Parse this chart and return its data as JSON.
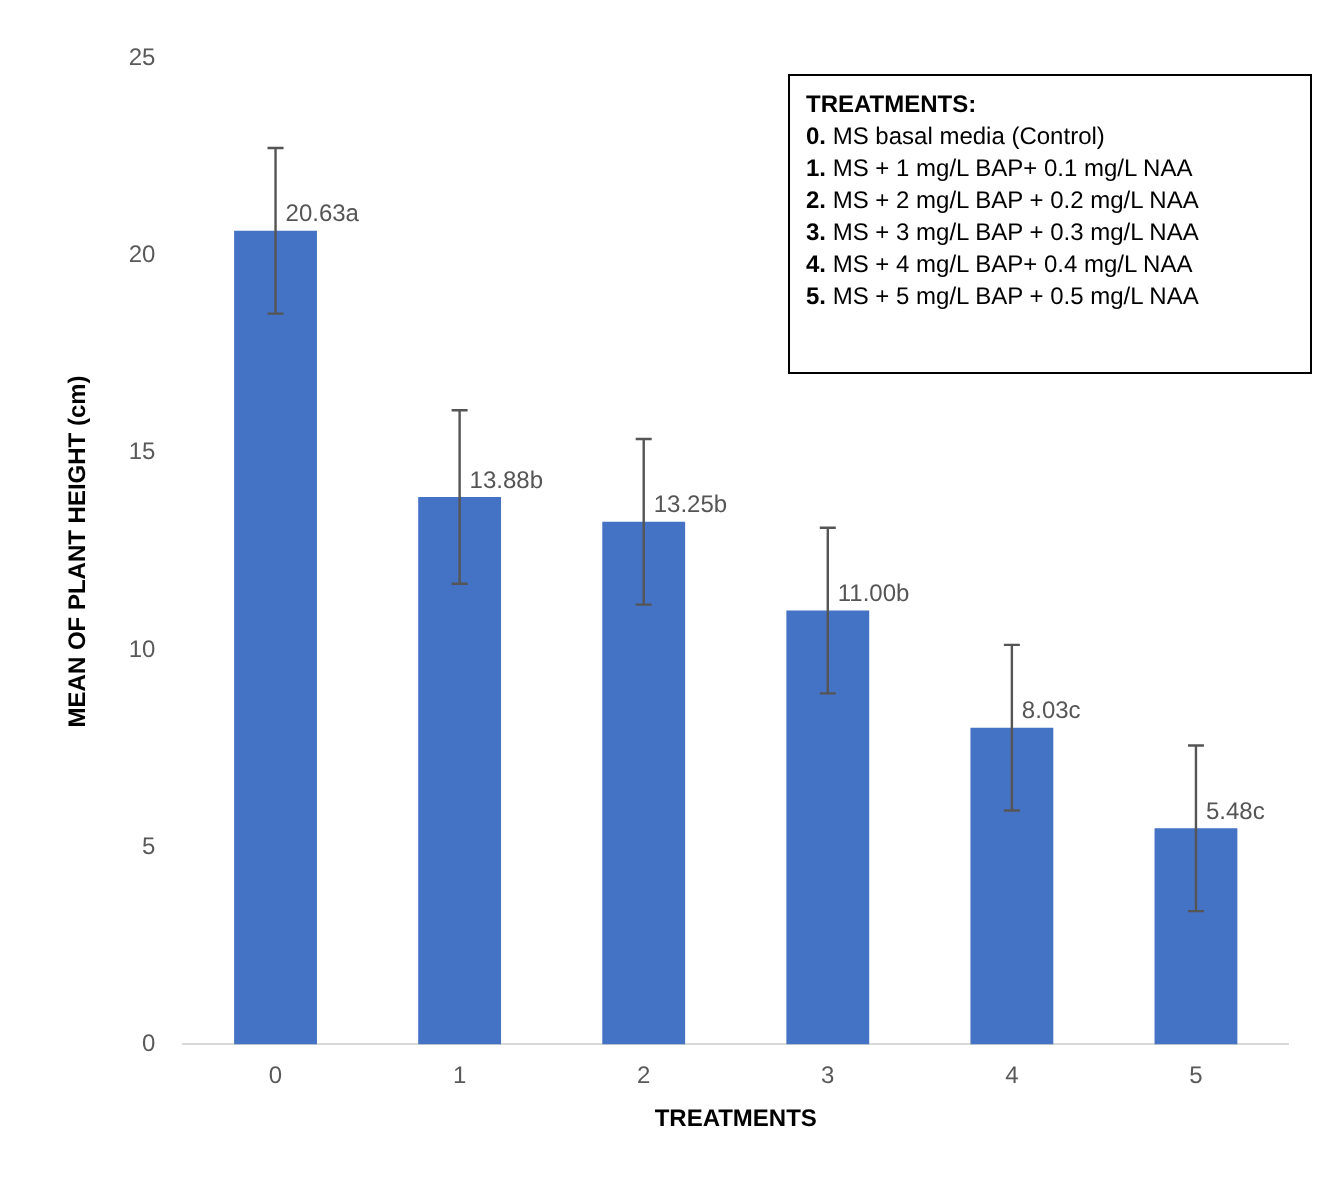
{
  "chart_data": {
    "type": "bar",
    "xlabel": "TREATMENTS",
    "ylabel": "MEAN OF PLANT HEIGHT (cm)",
    "categories": [
      "0",
      "1",
      "2",
      "3",
      "4",
      "5"
    ],
    "values": [
      20.63,
      13.88,
      13.25,
      11.0,
      8.03,
      5.48
    ],
    "value_labels": [
      "20.63a",
      "13.88b",
      "13.25b",
      "11.00b",
      "8.03c",
      "5.48c"
    ],
    "errors": [
      2.1,
      2.2,
      2.1,
      2.1,
      2.1,
      2.1
    ],
    "color": "#4472c4",
    "ylim": [
      0,
      25
    ],
    "yticks": [
      0,
      5,
      10,
      15,
      20,
      25
    ],
    "grid": false,
    "legend": false,
    "annotations": [
      "TREATMENTS:",
      "0. MS basal media (Control)",
      "1. MS + 1 mg/L BAP+ 0.1 mg/L NAA",
      "2. MS + 2 mg/L BAP + 0.2 mg/L NAA",
      "3. MS + 3 mg/L BAP + 0.3 mg/L NAA",
      "4. MS + 4 mg/L BAP+ 0.4 mg/L NAA",
      "5. MS + 5 mg/L BAP + 0.5 mg/L NAA"
    ]
  }
}
